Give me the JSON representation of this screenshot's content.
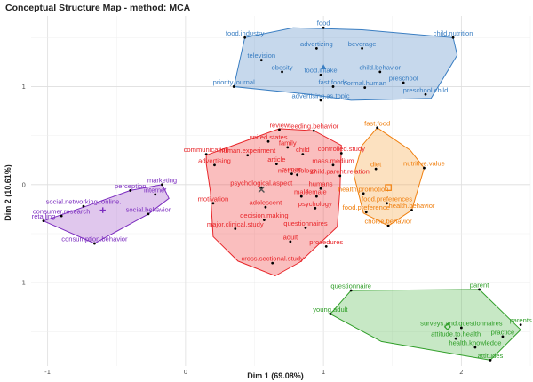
{
  "chart_data": {
    "type": "scatter",
    "title": "Conceptual Structure Map - method: MCA",
    "xlabel": "Dim 1 (69.08%)",
    "ylabel": "Dim 2 (10.61%)",
    "xlim": [
      -1.12,
      2.5
    ],
    "ylim": [
      -1.85,
      1.72
    ],
    "x_ticks": [
      -1,
      0,
      1,
      2
    ],
    "y_ticks": [
      -1,
      0,
      1
    ],
    "grid": true,
    "legend": "none",
    "clusters": [
      {
        "color": "#3a7ec2",
        "fill": "#4d86c4",
        "centroid": [
          1.0,
          1.2
        ],
        "centroid_marker": "triangle",
        "hull": [
          [
            0.78,
            1.6
          ],
          [
            1.28,
            1.58
          ],
          [
            1.94,
            1.5
          ],
          [
            1.97,
            1.32
          ],
          [
            1.78,
            0.88
          ],
          [
            1.2,
            0.86
          ],
          [
            0.9,
            0.92
          ],
          [
            0.35,
            1.0
          ],
          [
            0.43,
            1.5
          ]
        ],
        "points": [
          {
            "label": "food",
            "x": 1.0,
            "y": 1.6
          },
          {
            "label": "food.industry",
            "x": 0.43,
            "y": 1.5
          },
          {
            "label": "child.nutrition",
            "x": 1.94,
            "y": 1.5
          },
          {
            "label": "advertizing",
            "x": 0.95,
            "y": 1.39
          },
          {
            "label": "beverage",
            "x": 1.28,
            "y": 1.39
          },
          {
            "label": "television",
            "x": 0.55,
            "y": 1.27
          },
          {
            "label": "obesity",
            "x": 0.7,
            "y": 1.15
          },
          {
            "label": "food.intake",
            "x": 0.98,
            "y": 1.12
          },
          {
            "label": "child.behavior",
            "x": 1.41,
            "y": 1.15
          },
          {
            "label": "preschool",
            "x": 1.58,
            "y": 1.04
          },
          {
            "label": "fast.foods",
            "x": 1.07,
            "y": 1.0
          },
          {
            "label": "normal.human",
            "x": 1.3,
            "y": 0.99
          },
          {
            "label": "preschool.child",
            "x": 1.74,
            "y": 0.92
          },
          {
            "label": "priority.journal",
            "x": 0.35,
            "y": 1.0
          },
          {
            "label": "advertising.as.topic",
            "x": 0.98,
            "y": 0.86
          }
        ]
      },
      {
        "color": "#e8272b",
        "fill": "#f03535",
        "centroid": [
          0.55,
          -0.05
        ],
        "centroid_marker": "x",
        "hull": [
          [
            0.68,
            0.57
          ],
          [
            0.93,
            0.55
          ],
          [
            1.13,
            0.4
          ],
          [
            1.12,
            -0.03
          ],
          [
            1.1,
            -0.43
          ],
          [
            0.83,
            -0.79
          ],
          [
            0.65,
            -0.93
          ],
          [
            0.38,
            -0.78
          ],
          [
            0.2,
            -0.53
          ],
          [
            0.18,
            -0.07
          ],
          [
            0.15,
            0.21
          ],
          [
            0.15,
            0.3
          ]
        ],
        "points": [
          {
            "label": "review",
            "x": 0.68,
            "y": 0.56
          },
          {
            "label": "feeding.behavior",
            "x": 0.93,
            "y": 0.55
          },
          {
            "label": "united.states",
            "x": 0.6,
            "y": 0.44
          },
          {
            "label": "family",
            "x": 0.74,
            "y": 0.38
          },
          {
            "label": "communication",
            "x": 0.15,
            "y": 0.31
          },
          {
            "label": "human.experiment",
            "x": 0.45,
            "y": 0.3
          },
          {
            "label": "child",
            "x": 0.85,
            "y": 0.31
          },
          {
            "label": "controlled.study",
            "x": 1.13,
            "y": 0.32
          },
          {
            "label": "advertising",
            "x": 0.21,
            "y": 0.2
          },
          {
            "label": "article",
            "x": 0.66,
            "y": 0.21
          },
          {
            "label": "mass.medium",
            "x": 1.07,
            "y": 0.2
          },
          {
            "label": "human",
            "x": 0.77,
            "y": 0.11
          },
          {
            "label": "methodology",
            "x": 0.81,
            "y": 0.1
          },
          {
            "label": "child.parent.relation",
            "x": 1.12,
            "y": 0.09
          },
          {
            "label": "psychological.aspect",
            "x": 0.55,
            "y": -0.03
          },
          {
            "label": "humans",
            "x": 0.98,
            "y": -0.04
          },
          {
            "label": "male",
            "x": 0.84,
            "y": -0.12
          },
          {
            "label": "female",
            "x": 0.95,
            "y": -0.12
          },
          {
            "label": "motivation",
            "x": 0.2,
            "y": -0.19
          },
          {
            "label": "adolescent",
            "x": 0.58,
            "y": -0.23
          },
          {
            "label": "psychology",
            "x": 0.94,
            "y": -0.24
          },
          {
            "label": "decision.making",
            "x": 0.57,
            "y": -0.36
          },
          {
            "label": "major.clinical.study",
            "x": 0.36,
            "y": -0.45
          },
          {
            "label": "questionnaires",
            "x": 0.87,
            "y": -0.44
          },
          {
            "label": "adult",
            "x": 0.76,
            "y": -0.58
          },
          {
            "label": "procedures",
            "x": 1.02,
            "y": -0.63
          },
          {
            "label": "cross.sectional.study",
            "x": 0.63,
            "y": -0.8
          }
        ]
      },
      {
        "color": "#f07f0e",
        "fill": "#f5a23c",
        "centroid": [
          1.47,
          -0.03
        ],
        "centroid_marker": "square",
        "hull": [
          [
            1.39,
            0.58
          ],
          [
            1.63,
            0.35
          ],
          [
            1.73,
            0.17
          ],
          [
            1.64,
            -0.26
          ],
          [
            1.47,
            -0.42
          ],
          [
            1.29,
            -0.29
          ],
          [
            1.22,
            0.1
          ],
          [
            1.28,
            0.4
          ]
        ],
        "points": [
          {
            "label": "fast.food",
            "x": 1.39,
            "y": 0.58
          },
          {
            "label": "diet",
            "x": 1.38,
            "y": 0.16
          },
          {
            "label": "nutritive.value",
            "x": 1.73,
            "y": 0.17
          },
          {
            "label": "health.promotion",
            "x": 1.29,
            "y": -0.09
          },
          {
            "label": "food.preferences",
            "x": 1.46,
            "y": -0.19
          },
          {
            "label": "health.behavior",
            "x": 1.64,
            "y": -0.26
          },
          {
            "label": "food.preference",
            "x": 1.31,
            "y": -0.28
          },
          {
            "label": "choice.behavior",
            "x": 1.47,
            "y": -0.42
          }
        ]
      },
      {
        "color": "#7b2cbf",
        "fill": "#a050c8",
        "centroid": [
          -0.6,
          -0.26
        ],
        "centroid_marker": "plus",
        "hull": [
          [
            -0.17,
            0.0
          ],
          [
            -0.4,
            -0.06
          ],
          [
            -0.74,
            -0.23
          ],
          [
            -1.03,
            -0.37
          ],
          [
            -0.66,
            -0.6
          ],
          [
            -0.27,
            -0.3
          ],
          [
            -0.12,
            -0.14
          ]
        ],
        "points": [
          {
            "label": "marketing",
            "x": -0.17,
            "y": 0.0
          },
          {
            "label": "perception",
            "x": -0.4,
            "y": -0.06
          },
          {
            "label": "internet",
            "x": -0.22,
            "y": -0.1
          },
          {
            "label": "social.networking..online.",
            "x": -0.74,
            "y": -0.22
          },
          {
            "label": "social.behavior",
            "x": -0.27,
            "y": -0.3
          },
          {
            "label": "consumer.research",
            "x": -0.9,
            "y": -0.32
          },
          {
            "label": "retailing",
            "x": -1.03,
            "y": -0.37
          },
          {
            "label": "consumption.behavior",
            "x": -0.66,
            "y": -0.6
          }
        ]
      },
      {
        "color": "#2f9e28",
        "fill": "#52b84a",
        "centroid": [
          1.9,
          -1.45
        ],
        "centroid_marker": "diamond",
        "hull": [
          [
            1.2,
            -1.08
          ],
          [
            2.13,
            -1.07
          ],
          [
            2.43,
            -1.48
          ],
          [
            2.21,
            -1.79
          ],
          [
            1.42,
            -1.6
          ],
          [
            1.05,
            -1.32
          ]
        ],
        "points": [
          {
            "label": "parent",
            "x": 2.13,
            "y": -1.07
          },
          {
            "label": "questionnaire",
            "x": 1.2,
            "y": -1.08
          },
          {
            "label": "young.adult",
            "x": 1.05,
            "y": -1.32
          },
          {
            "label": "parents",
            "x": 2.43,
            "y": -1.43
          },
          {
            "label": "surveys.and.questionnaires",
            "x": 2.0,
            "y": -1.46
          },
          {
            "label": "practice",
            "x": 2.3,
            "y": -1.55
          },
          {
            "label": "attitude.to.health",
            "x": 1.96,
            "y": -1.57
          },
          {
            "label": "health.knowledge",
            "x": 2.1,
            "y": -1.66
          },
          {
            "label": "attitudes",
            "x": 2.21,
            "y": -1.79
          }
        ]
      }
    ]
  }
}
